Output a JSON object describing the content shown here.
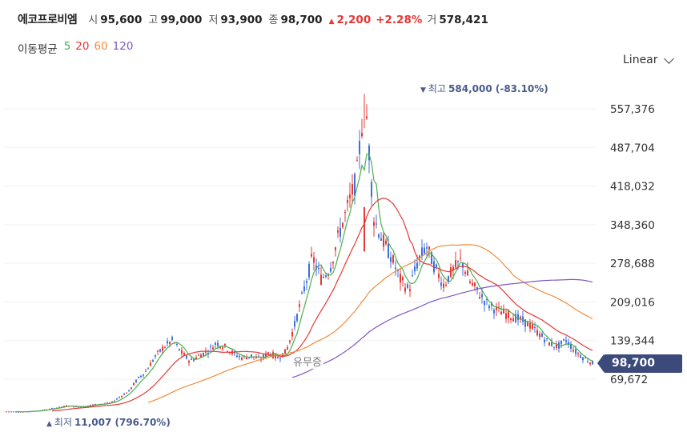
{
  "header": {
    "name": "에코프로비엠",
    "open_label": "시",
    "open": "95,600",
    "high_label": "고",
    "high": "99,000",
    "low_label": "저",
    "low": "93,900",
    "close_label": "종",
    "close": "98,700",
    "change": "2,200",
    "change_pct": "+2.28%",
    "volume_label": "거",
    "volume": "578,421",
    "up_color": "#e53935"
  },
  "ma": {
    "title": "이동평균",
    "periods": [
      {
        "label": "5",
        "color": "#4caf50"
      },
      {
        "label": "20",
        "color": "#e53935"
      },
      {
        "label": "60",
        "color": "#f08c3c"
      },
      {
        "label": "120",
        "color": "#7e57c2"
      }
    ]
  },
  "scale_selector": {
    "label": "Linear",
    "icon": "chevron-down-icon"
  },
  "annotations": {
    "high_label": "최고",
    "high_value": "584,000 (-83.10%)",
    "low_label": "최저",
    "low_value": "11,007 (796.70%)"
  },
  "watermark": "유무증",
  "current_price_tag": "98,700",
  "chart_data": {
    "type": "candlestick",
    "y_ticks": [
      "557,376",
      "487,704",
      "418,032",
      "348,360",
      "278,688",
      "209,016",
      "139,344",
      "69,672"
    ],
    "y_tick_values": [
      557376,
      487704,
      418032,
      348360,
      278688,
      209016,
      139344,
      69672
    ],
    "ylim": [
      11007,
      584000
    ],
    "grid": true,
    "last_close": 98700,
    "high": 584000,
    "low": 11007,
    "close_series_approx": [
      11500,
      11200,
      11007,
      12000,
      13500,
      16000,
      19000,
      22000,
      20000,
      21000,
      24000,
      25000,
      27000,
      38000,
      48000,
      70000,
      85000,
      110000,
      128000,
      140000,
      118000,
      102000,
      112000,
      120000,
      135000,
      128000,
      115000,
      108000,
      112000,
      105000,
      118000,
      108000,
      120000,
      170000,
      230000,
      290000,
      250000,
      270000,
      330000,
      380000,
      430000,
      584000,
      360000,
      320000,
      290000,
      250000,
      230000,
      280000,
      310000,
      270000,
      240000,
      265000,
      285000,
      245000,
      225000,
      205000,
      195000,
      188000,
      182000,
      175000,
      165000,
      150000,
      135000,
      128000,
      140000,
      120000,
      108000,
      98700
    ]
  }
}
